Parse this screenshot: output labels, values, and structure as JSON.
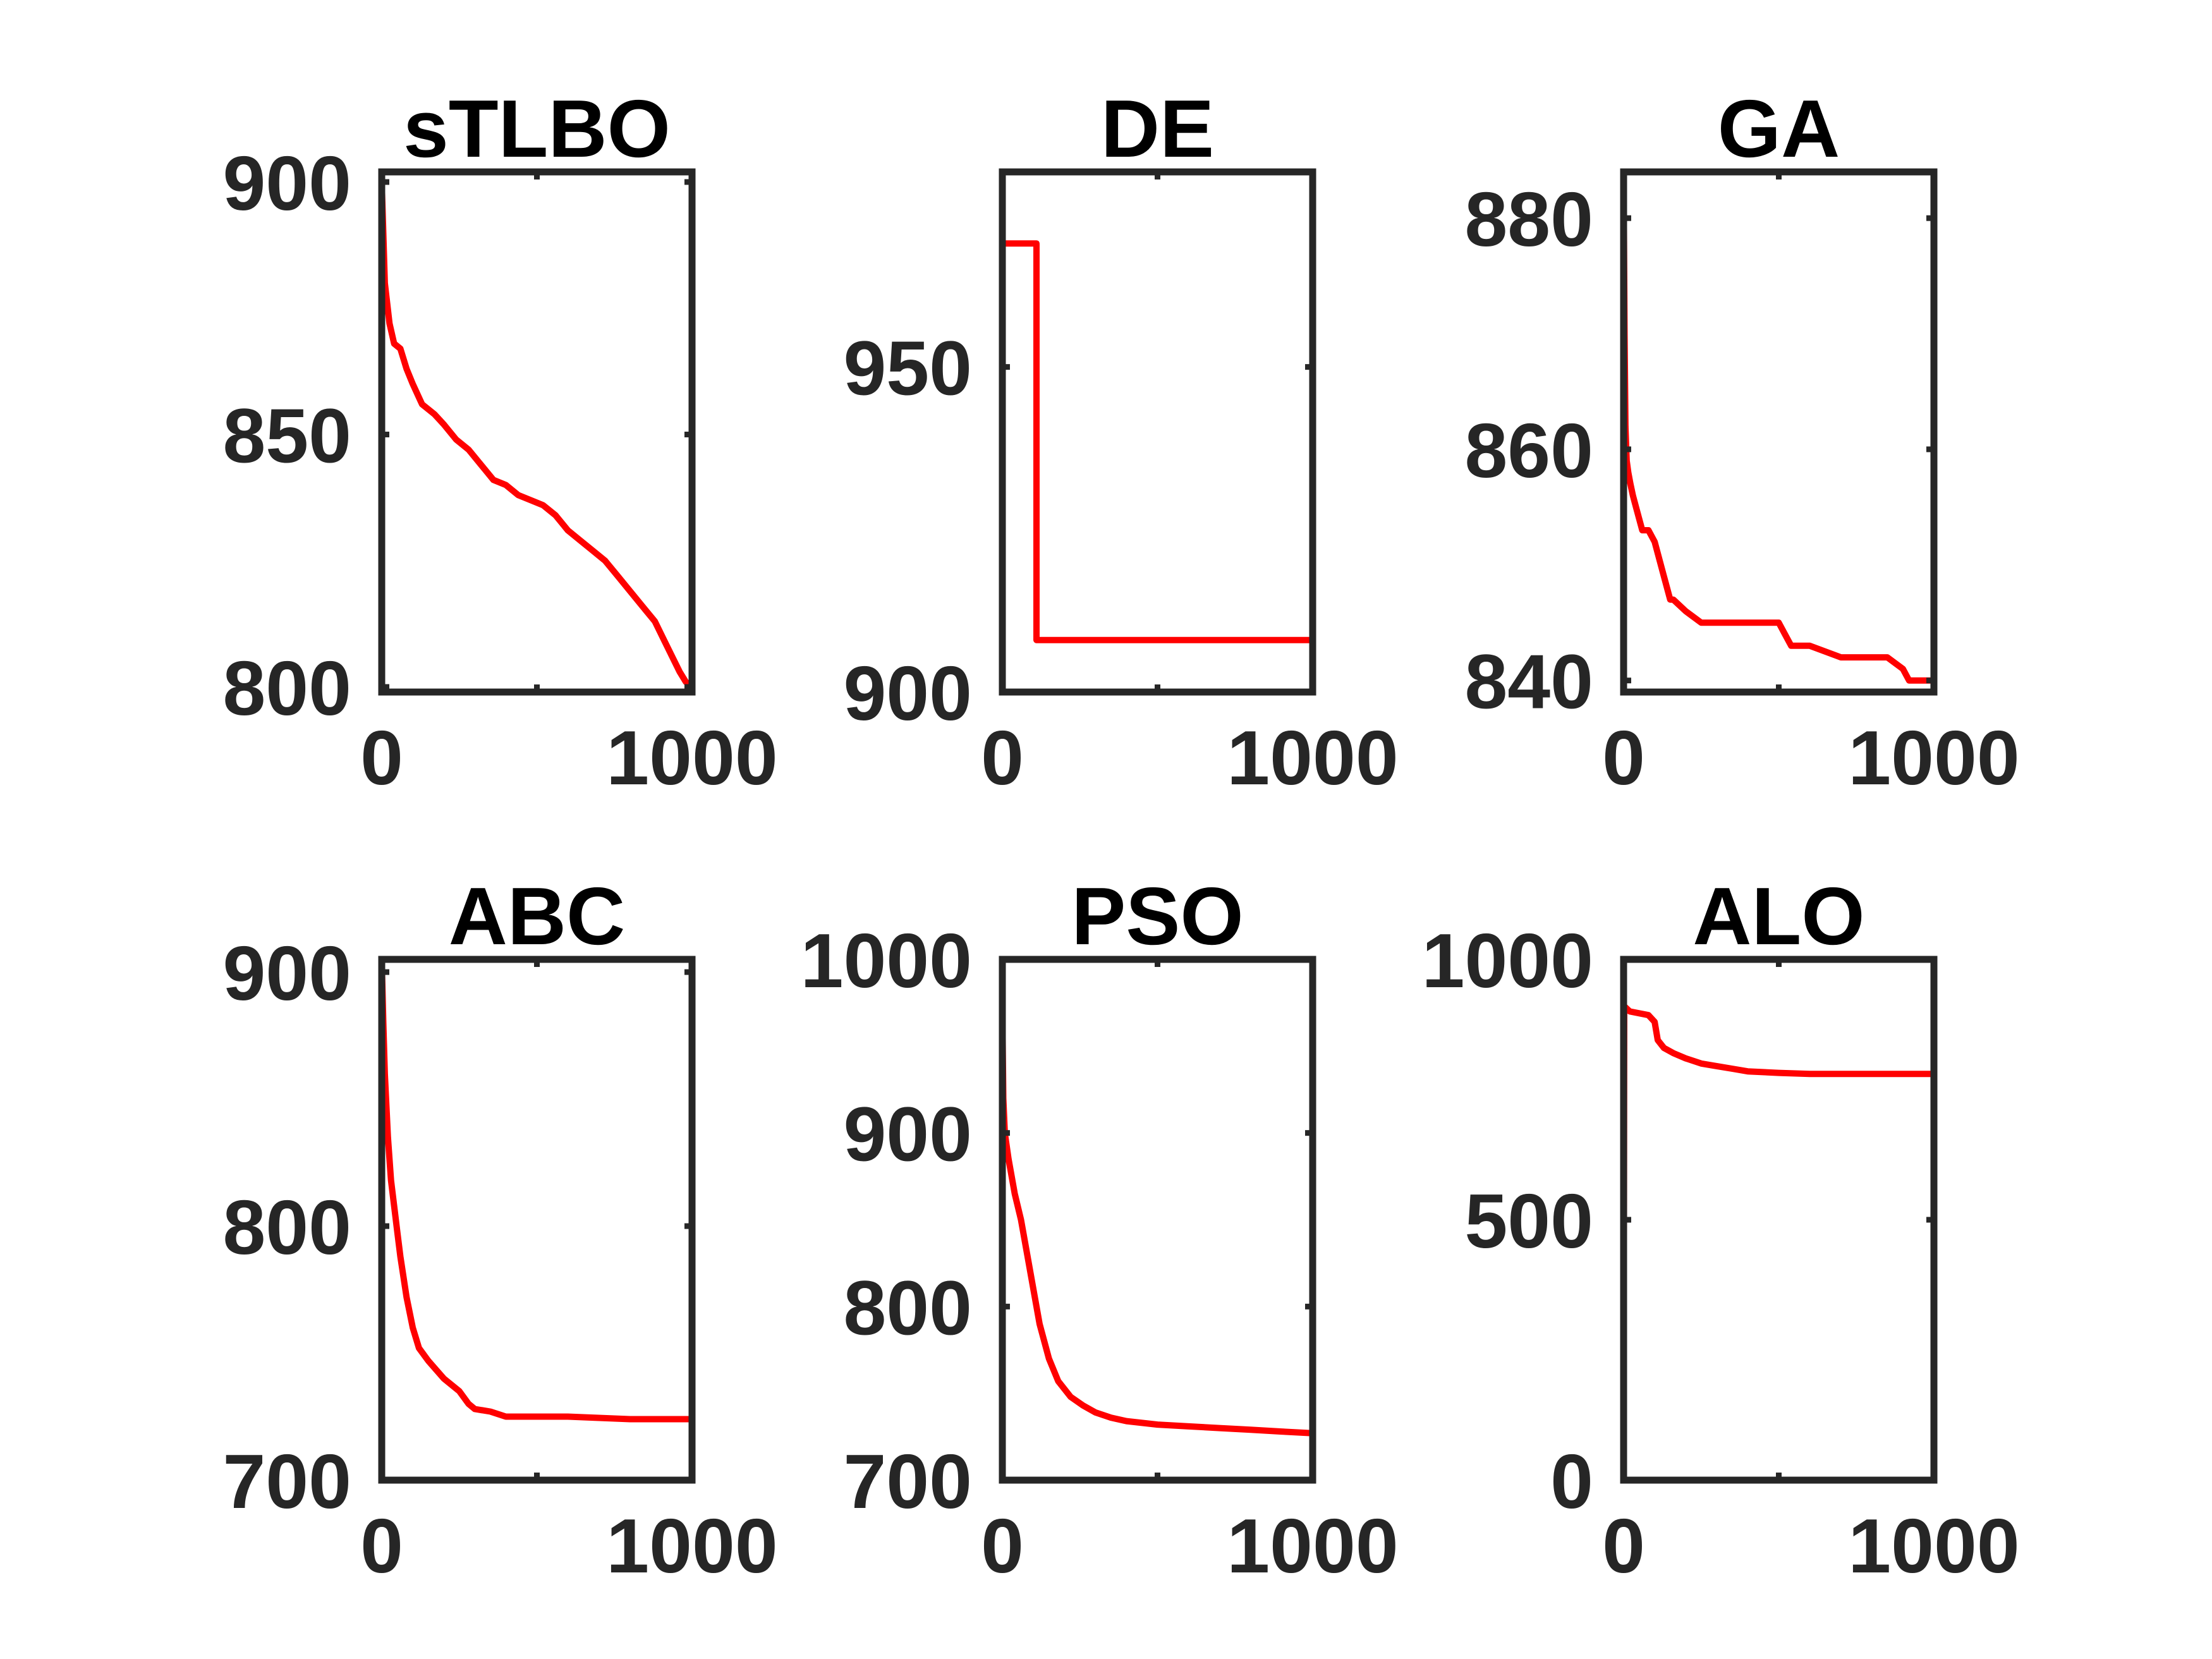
{
  "figure": {
    "layout": "2x3 grid of subplots",
    "line_color": "#ff0000",
    "axes_color": "#262626",
    "background": "#ffffff"
  },
  "chart_data": [
    {
      "type": "line",
      "title": "sTLBO",
      "xlim": [
        0,
        1000
      ],
      "ylim": [
        799,
        902
      ],
      "xticks": [
        0,
        500,
        1000
      ],
      "xtick_labels": [
        "0",
        "",
        "1000"
      ],
      "yticks": [
        800,
        850,
        900
      ],
      "ytick_labels": [
        "800",
        "850",
        "900"
      ],
      "grid": false,
      "series": [
        {
          "x": [
            0,
            10,
            25,
            40,
            60,
            80,
            100,
            130,
            150,
            170,
            200,
            240,
            280,
            320,
            360,
            400,
            440,
            480,
            520,
            560,
            600,
            640,
            680,
            720,
            760,
            800,
            840,
            880,
            920,
            960,
            980,
            1000
          ],
          "y": [
            900,
            880,
            872,
            868,
            867,
            863,
            860,
            856,
            855,
            854,
            852,
            849,
            847,
            844,
            841,
            840,
            838,
            837,
            836,
            834,
            831,
            829,
            827,
            825,
            822,
            819,
            816,
            813,
            808,
            803,
            801,
            800
          ]
        }
      ]
    },
    {
      "type": "line",
      "title": "DE",
      "xlim": [
        0,
        1000
      ],
      "ylim": [
        900,
        980
      ],
      "xticks": [
        0,
        500,
        1000
      ],
      "xtick_labels": [
        "0",
        "",
        "1000"
      ],
      "yticks": [
        900,
        950
      ],
      "ytick_labels": [
        "900",
        "950"
      ],
      "grid": false,
      "series": [
        {
          "x": [
            0,
            110,
            110,
            1000
          ],
          "y": [
            969,
            969,
            908,
            908
          ]
        }
      ]
    },
    {
      "type": "line",
      "title": "GA",
      "xlim": [
        0,
        1000
      ],
      "ylim": [
        839,
        884
      ],
      "xticks": [
        0,
        500,
        1000
      ],
      "xtick_labels": [
        "0",
        "",
        "1000"
      ],
      "yticks": [
        840,
        860,
        880
      ],
      "ytick_labels": [
        "840",
        "860",
        "880"
      ],
      "grid": false,
      "series": [
        {
          "x": [
            0,
            3,
            6,
            10,
            15,
            22,
            30,
            40,
            60,
            80,
            100,
            130,
            150,
            160,
            200,
            250,
            300,
            350,
            400,
            450,
            500,
            520,
            540,
            560,
            600,
            700,
            800,
            850,
            900,
            920,
            950,
            1000
          ],
          "y": [
            884,
            870,
            862,
            859,
            858,
            857,
            856,
            855,
            853,
            853,
            852,
            849,
            847,
            847,
            846,
            845,
            845,
            845,
            845,
            845,
            845,
            844,
            843,
            843,
            843,
            842,
            842,
            842,
            841,
            840,
            840,
            840
          ]
        }
      ]
    },
    {
      "type": "line",
      "title": "ABC",
      "xlim": [
        0,
        1000
      ],
      "ylim": [
        700,
        905
      ],
      "xticks": [
        0,
        500,
        1000
      ],
      "xtick_labels": [
        "0",
        "",
        "1000"
      ],
      "yticks": [
        700,
        800,
        900
      ],
      "ytick_labels": [
        "700",
        "800",
        "900"
      ],
      "grid": false,
      "series": [
        {
          "x": [
            0,
            5,
            10,
            20,
            30,
            40,
            50,
            60,
            80,
            100,
            120,
            150,
            200,
            250,
            280,
            300,
            350,
            400,
            500,
            600,
            800,
            1000
          ],
          "y": [
            905,
            880,
            860,
            835,
            818,
            808,
            798,
            788,
            772,
            760,
            752,
            747,
            740,
            735,
            730,
            728,
            727,
            725,
            725,
            725,
            724,
            724
          ]
        }
      ]
    },
    {
      "type": "line",
      "title": "PSO",
      "xlim": [
        0,
        1000
      ],
      "ylim": [
        700,
        1000
      ],
      "xticks": [
        0,
        500,
        1000
      ],
      "xtick_labels": [
        "0",
        "",
        "1000"
      ],
      "yticks": [
        700,
        800,
        900,
        1000
      ],
      "ytick_labels": [
        "700",
        "800",
        "900",
        "1000"
      ],
      "grid": false,
      "series": [
        {
          "x": [
            0,
            3,
            8,
            20,
            40,
            60,
            80,
            100,
            120,
            150,
            180,
            220,
            260,
            300,
            350,
            400,
            500,
            600,
            700,
            800,
            900,
            1000
          ],
          "y": [
            972,
            920,
            900,
            885,
            865,
            850,
            830,
            810,
            790,
            770,
            757,
            748,
            743,
            739,
            736,
            734,
            732,
            731,
            730,
            729,
            728,
            727
          ]
        }
      ]
    },
    {
      "type": "line",
      "title": "ALO",
      "xlim": [
        0,
        1000
      ],
      "ylim": [
        0,
        1000
      ],
      "xticks": [
        0,
        500,
        1000
      ],
      "xtick_labels": [
        "0",
        "",
        "1000"
      ],
      "yticks": [
        0,
        500,
        1000
      ],
      "ytick_labels": [
        "0",
        "500",
        "1000"
      ],
      "grid": false,
      "series": [
        {
          "x": [
            0,
            2,
            20,
            80,
            100,
            110,
            130,
            160,
            200,
            250,
            300,
            350,
            400,
            500,
            600,
            800,
            1000
          ],
          "y": [
            0,
            910,
            900,
            893,
            880,
            845,
            830,
            820,
            810,
            800,
            795,
            790,
            785,
            782,
            780,
            780,
            780
          ]
        }
      ]
    }
  ]
}
